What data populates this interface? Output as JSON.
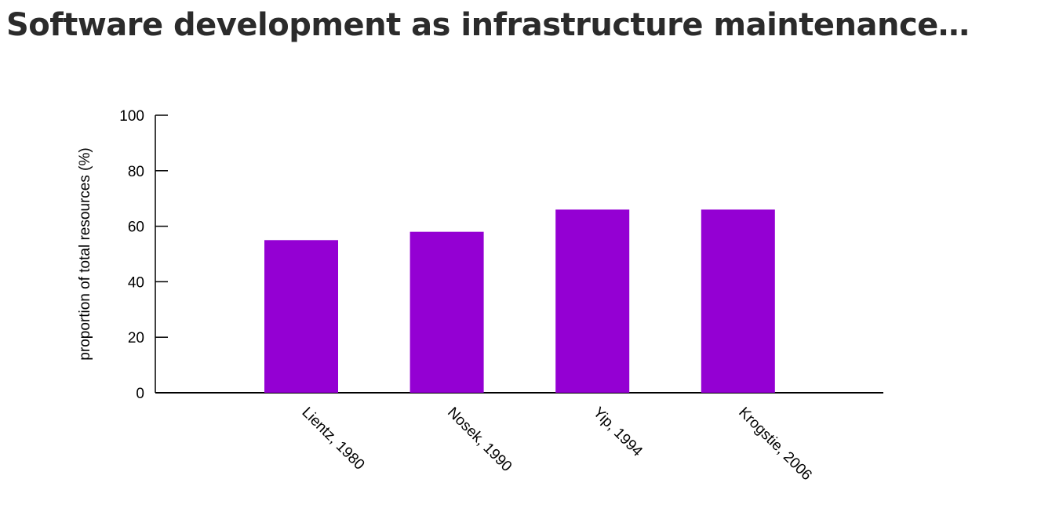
{
  "page": {
    "title": "Software development as infrastructure maintenance…"
  },
  "chart_data": {
    "type": "bar",
    "title": "",
    "xlabel": "",
    "ylabel": "proportion of total resources (%)",
    "categories": [
      "Lientz, 1980",
      "Nosek, 1990",
      "Yip, 1994",
      "Krogstie, 2006"
    ],
    "values": [
      55,
      58,
      66,
      66
    ],
    "ylim": [
      0,
      100
    ],
    "yticks": [
      0,
      20,
      40,
      60,
      80,
      100
    ],
    "bar_color": "#9400d3",
    "grid": false,
    "legend": "none"
  }
}
